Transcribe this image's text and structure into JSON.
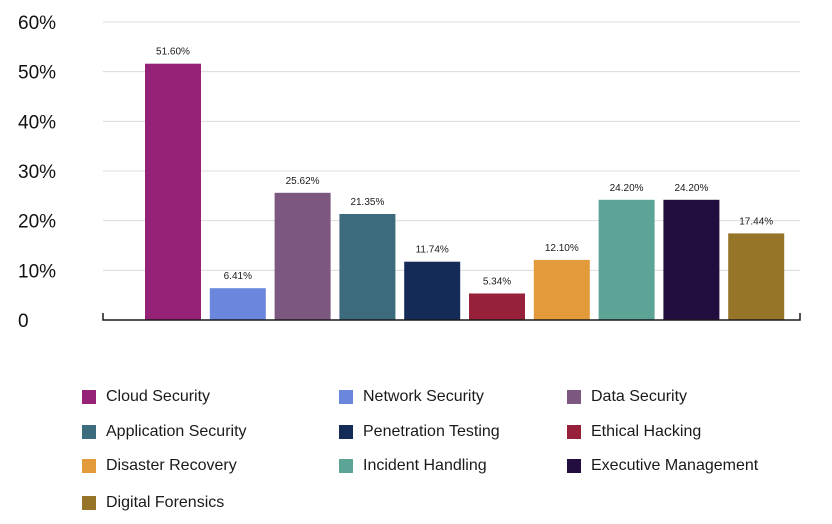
{
  "chart_data": {
    "type": "bar",
    "categories": [
      "Cloud Security",
      "Network Security",
      "Data Security",
      "Application Security",
      "Penetration Testing",
      "Ethical Hacking",
      "Disaster Recovery",
      "Incident Handling",
      "Executive Management",
      "Digital Forensics"
    ],
    "values": [
      51.6,
      6.41,
      25.62,
      21.35,
      11.74,
      5.34,
      12.1,
      24.2,
      24.2,
      17.44
    ],
    "data_labels": [
      "51.60%",
      "6.41%",
      "25.62%",
      "21.35%",
      "11.74%",
      "5.34%",
      "12.10%",
      "24.20%",
      "24.20%",
      "17.44%"
    ],
    "colors": [
      "#962278",
      "#6a87dd",
      "#7c577f",
      "#3d6b7e",
      "#142a57",
      "#97203a",
      "#e29a3a",
      "#5ca596",
      "#220e3e",
      "#967428"
    ],
    "yticks": [
      0,
      10,
      20,
      30,
      40,
      50,
      60
    ],
    "ytick_labels": [
      "0",
      "10%",
      "20%",
      "30%",
      "40%",
      "50%",
      "60%"
    ],
    "ylim": [
      0,
      60
    ],
    "grid": true,
    "legend_position": "bottom"
  }
}
